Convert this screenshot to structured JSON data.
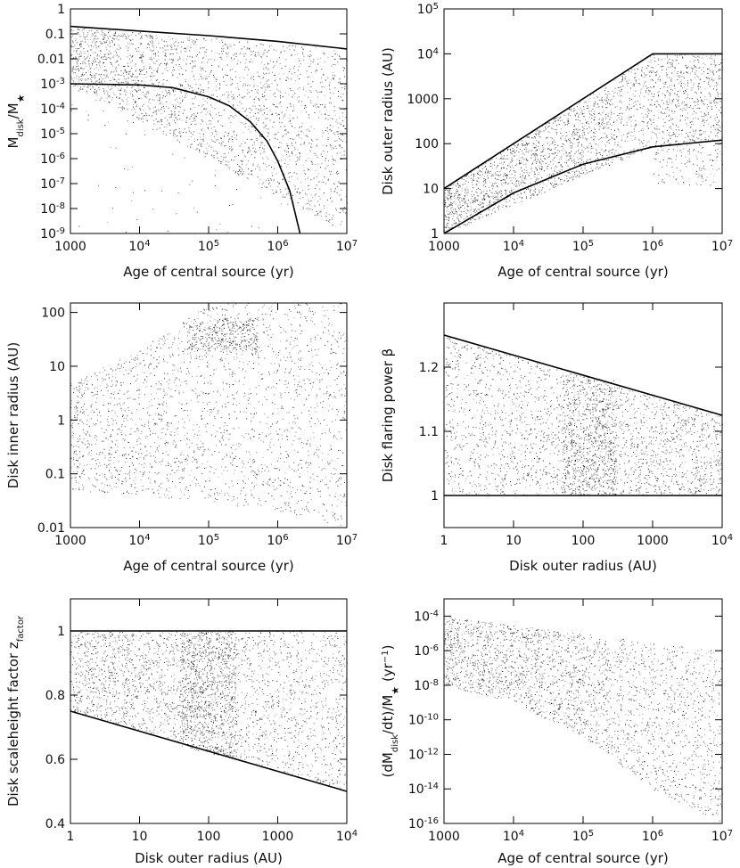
{
  "chart_data": [
    {
      "type": "scatter",
      "id": "p1",
      "xlabel": "Age of central source (yr)",
      "ylabel": "M_disk/M_*",
      "xscale": "log",
      "yscale": "log",
      "xlim": [
        1000,
        10000000
      ],
      "ylim": [
        1e-09,
        1
      ],
      "xticks": [
        {
          "value": 1000,
          "label": "1000"
        },
        {
          "value": 10000,
          "label": "10",
          "sup": "4"
        },
        {
          "value": 100000,
          "label": "10",
          "sup": "5"
        },
        {
          "value": 1000000,
          "label": "10",
          "sup": "6"
        },
        {
          "value": 10000000,
          "label": "10",
          "sup": "7"
        }
      ],
      "yticks": [
        {
          "value": 1,
          "label": "1"
        },
        {
          "value": 0.1,
          "label": "0.1"
        },
        {
          "value": 0.01,
          "label": "0.01"
        },
        {
          "value": 0.001,
          "label": "10",
          "sup": "-3"
        },
        {
          "value": 0.0001,
          "label": "10",
          "sup": "-4"
        },
        {
          "value": 1e-05,
          "label": "10",
          "sup": "-5"
        },
        {
          "value": 1e-06,
          "label": "10",
          "sup": "-6"
        },
        {
          "value": 1e-07,
          "label": "10",
          "sup": "-7"
        },
        {
          "value": 1e-08,
          "label": "10",
          "sup": "-8"
        },
        {
          "value": 1e-09,
          "label": "10",
          "sup": "-9"
        }
      ],
      "lines": [
        {
          "x": [
            1000,
            10000,
            100000,
            1000000,
            10000000
          ],
          "y": [
            0.2,
            0.13,
            0.085,
            0.05,
            0.025
          ]
        },
        {
          "x": [
            1000,
            10000,
            30000,
            100000,
            200000,
            400000,
            700000,
            1000000,
            1500000,
            2100000
          ],
          "y": [
            0.001,
            0.0009,
            0.0007,
            0.0003,
            0.00013,
            3e-05,
            5e-06,
            8e-07,
            5e-08,
            1e-09
          ]
        }
      ],
      "density": [
        {
          "x": [
            1000,
            10000000
          ],
          "y_low": [
            0.001,
            1e-09
          ],
          "y_high": [
            0.2,
            0.025
          ],
          "n": 2400
        },
        {
          "x": [
            1000,
            10000000
          ],
          "y_low": [
            1e-09,
            1e-09
          ],
          "y_high": [
            0.001,
            0.001
          ],
          "n": 120
        }
      ]
    },
    {
      "type": "scatter",
      "id": "p2",
      "xlabel": "Age of central source (yr)",
      "ylabel": "Disk outer radius (AU)",
      "xscale": "log",
      "yscale": "log",
      "xlim": [
        1000,
        10000000
      ],
      "ylim": [
        1,
        100000
      ],
      "xticks": [
        {
          "value": 1000,
          "label": "1000"
        },
        {
          "value": 10000,
          "label": "10",
          "sup": "4"
        },
        {
          "value": 100000,
          "label": "10",
          "sup": "5"
        },
        {
          "value": 1000000,
          "label": "10",
          "sup": "6"
        },
        {
          "value": 10000000,
          "label": "10",
          "sup": "7"
        }
      ],
      "yticks": [
        {
          "value": 100000,
          "label": "10",
          "sup": "5"
        },
        {
          "value": 10000,
          "label": "10",
          "sup": "4"
        },
        {
          "value": 1000,
          "label": "1000"
        },
        {
          "value": 100,
          "label": "100"
        },
        {
          "value": 10,
          "label": "10"
        },
        {
          "value": 1,
          "label": "1"
        }
      ],
      "lines": [
        {
          "x": [
            1000,
            1000000,
            10000000
          ],
          "y": [
            10,
            10000,
            10000
          ]
        },
        {
          "x": [
            1000,
            10000,
            100000,
            1000000,
            10000000
          ],
          "y": [
            1,
            8,
            35,
            85,
            120
          ]
        }
      ],
      "density": [
        {
          "x": [
            1000,
            1000000,
            10000000
          ],
          "y_low": [
            1,
            85,
            120
          ],
          "y_high": [
            10,
            10000,
            10000
          ],
          "n": 2400
        },
        {
          "x": [
            1000000,
            10000000
          ],
          "y_low": [
            12,
            12
          ],
          "y_high": [
            120,
            120
          ],
          "n": 150
        }
      ]
    },
    {
      "type": "scatter",
      "id": "p3",
      "xlabel": "Age of central source (yr)",
      "ylabel": "Disk inner radius (AU)",
      "xscale": "log",
      "yscale": "log",
      "xlim": [
        1000,
        10000000
      ],
      "ylim": [
        0.01,
        150
      ],
      "xticks": [
        {
          "value": 1000,
          "label": "1000"
        },
        {
          "value": 10000,
          "label": "10",
          "sup": "4"
        },
        {
          "value": 100000,
          "label": "10",
          "sup": "5"
        },
        {
          "value": 1000000,
          "label": "10",
          "sup": "6"
        },
        {
          "value": 10000000,
          "label": "10",
          "sup": "7"
        }
      ],
      "yticks": [
        {
          "value": 100,
          "label": "100"
        },
        {
          "value": 10,
          "label": "10"
        },
        {
          "value": 1,
          "label": "1"
        },
        {
          "value": 0.1,
          "label": "0.1"
        },
        {
          "value": 0.01,
          "label": "0.01"
        }
      ],
      "lines": [],
      "density": [
        {
          "x": [
            1000,
            10000,
            100000,
            1000000,
            10000000
          ],
          "y_low": [
            0.05,
            0.04,
            0.03,
            0.02,
            0.01
          ],
          "y_high": [
            5,
            20,
            150,
            150,
            150
          ],
          "n": 2200
        },
        {
          "x": [
            50000,
            500000
          ],
          "y_low": [
            20,
            20
          ],
          "y_high": [
            80,
            80
          ],
          "n": 350
        }
      ]
    },
    {
      "type": "scatter",
      "id": "p4",
      "xlabel": "Disk outer radius (AU)",
      "ylabel": "Disk flaring power β",
      "xscale": "log",
      "yscale": "linear",
      "xlim": [
        1,
        10000
      ],
      "ylim": [
        0.95,
        1.3
      ],
      "xticks": [
        {
          "value": 1,
          "label": "1"
        },
        {
          "value": 10,
          "label": "10"
        },
        {
          "value": 100,
          "label": "100"
        },
        {
          "value": 1000,
          "label": "1000"
        },
        {
          "value": 10000,
          "label": "10",
          "sup": "4"
        }
      ],
      "yticks": [
        {
          "value": 1.2,
          "label": "1.2"
        },
        {
          "value": 1.1,
          "label": "1.1"
        },
        {
          "value": 1,
          "label": "1"
        }
      ],
      "lines": [
        {
          "x": [
            1,
            10000
          ],
          "y": [
            1.25,
            1.125
          ]
        },
        {
          "x": [
            1,
            10000
          ],
          "y": [
            1,
            1
          ]
        }
      ],
      "density": [
        {
          "x": [
            1,
            10000
          ],
          "y_low": [
            1,
            1
          ],
          "y_high": [
            1.25,
            1.125
          ],
          "n": 2200
        },
        {
          "x": [
            50,
            300
          ],
          "y_low": [
            1,
            1
          ],
          "y_high": [
            1.19,
            1.18
          ],
          "n": 700
        }
      ]
    },
    {
      "type": "scatter",
      "id": "p5",
      "xlabel": "Disk outer radius (AU)",
      "ylabel": "Disk scaleheight factor z_factor",
      "xscale": "log",
      "yscale": "linear",
      "xlim": [
        1,
        10000
      ],
      "ylim": [
        0.4,
        1.1
      ],
      "xticks": [
        {
          "value": 1,
          "label": "1"
        },
        {
          "value": 10,
          "label": "10"
        },
        {
          "value": 100,
          "label": "100"
        },
        {
          "value": 1000,
          "label": "1000"
        },
        {
          "value": 10000,
          "label": "10",
          "sup": "4"
        }
      ],
      "yticks": [
        {
          "value": 1,
          "label": "1"
        },
        {
          "value": 0.8,
          "label": "0.8"
        },
        {
          "value": 0.6,
          "label": "0.6"
        },
        {
          "value": 0.4,
          "label": "0.4"
        }
      ],
      "lines": [
        {
          "x": [
            1,
            10000
          ],
          "y": [
            1,
            1
          ]
        },
        {
          "x": [
            1,
            10000
          ],
          "y": [
            0.75,
            0.5
          ]
        }
      ],
      "density": [
        {
          "x": [
            1,
            10000
          ],
          "y_low": [
            0.75,
            0.5
          ],
          "y_high": [
            1,
            1
          ],
          "n": 2400
        },
        {
          "x": [
            40,
            250
          ],
          "y_low": [
            0.64,
            0.6
          ],
          "y_high": [
            1,
            1
          ],
          "n": 800
        }
      ]
    },
    {
      "type": "scatter",
      "id": "p6",
      "xlabel": "Age of central source (yr)",
      "ylabel": "(dM_disk/dt)/M_* (yr^-1)",
      "xscale": "log",
      "yscale": "log",
      "xlim": [
        1000,
        10000000
      ],
      "ylim": [
        1e-16,
        0.001
      ],
      "xticks": [
        {
          "value": 1000,
          "label": "1000"
        },
        {
          "value": 10000,
          "label": "10",
          "sup": "4"
        },
        {
          "value": 100000,
          "label": "10",
          "sup": "5"
        },
        {
          "value": 1000000,
          "label": "10",
          "sup": "6"
        },
        {
          "value": 10000000,
          "label": "10",
          "sup": "7"
        }
      ],
      "yticks": [
        {
          "value": 0.0001,
          "label": "10",
          "sup": "-4"
        },
        {
          "value": 1e-06,
          "label": "10",
          "sup": "-6"
        },
        {
          "value": 1e-08,
          "label": "10",
          "sup": "-8"
        },
        {
          "value": 1e-10,
          "label": "10",
          "sup": "-10"
        },
        {
          "value": 1e-12,
          "label": "10",
          "sup": "-12"
        },
        {
          "value": 1e-14,
          "label": "10",
          "sup": "-14"
        },
        {
          "value": 1e-16,
          "label": "10",
          "sup": "-16"
        }
      ],
      "lines": [],
      "density": [
        {
          "x": [
            1000,
            10000,
            100000,
            1000000,
            10000000
          ],
          "y_low": [
            1e-08,
            1e-09,
            1e-11,
            1e-14,
            1e-16
          ],
          "y_high": [
            0.0001,
            3e-05,
            1e-05,
            3e-06,
            1e-06
          ],
          "n": 2600
        }
      ]
    }
  ]
}
